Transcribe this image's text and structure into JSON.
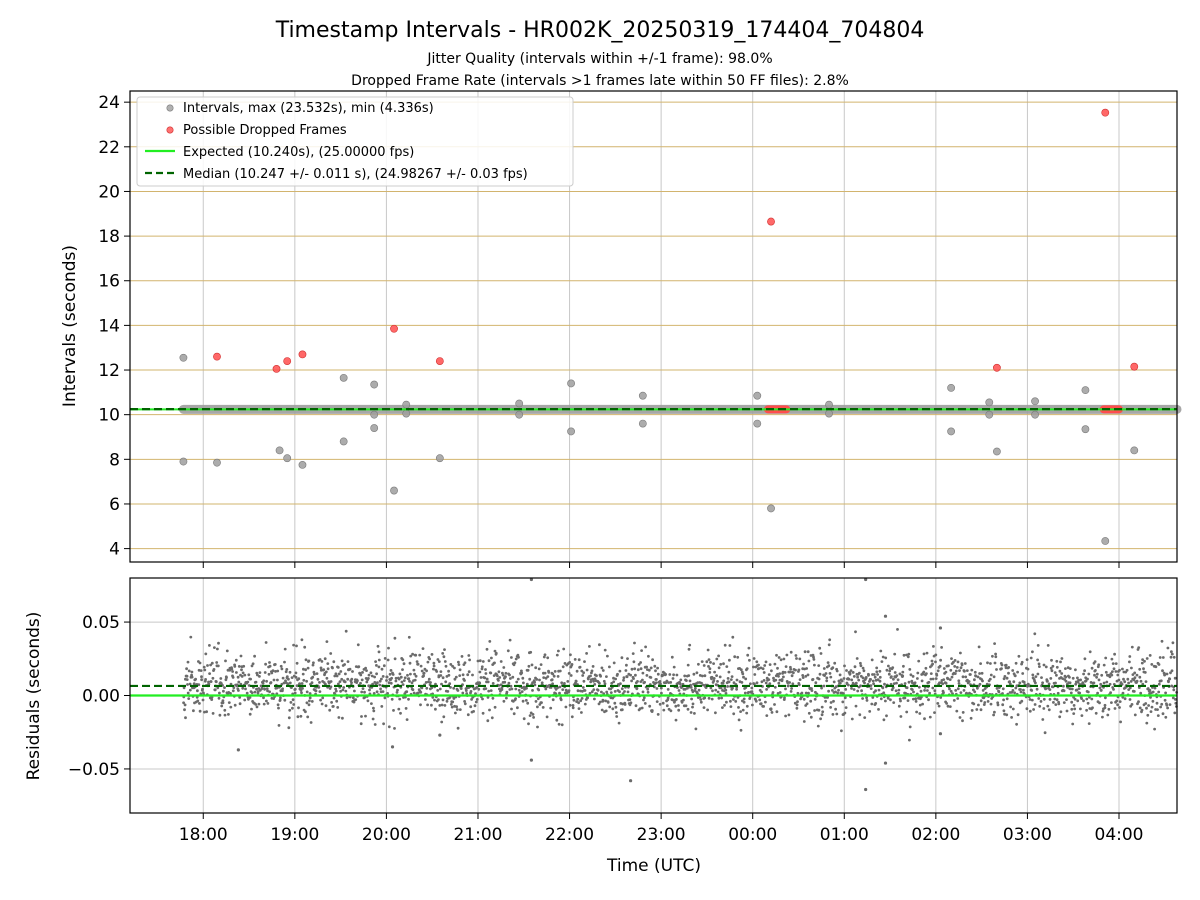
{
  "figure": {
    "title": "Timestamp Intervals - HR002K_20250319_174404_704804",
    "subtitle_jitter": "Jitter Quality (intervals within +/-1 frame): 98.0%",
    "subtitle_dropped": "Dropped Frame Rate (intervals >1 frames late within 50 FF files): 2.8%"
  },
  "colors": {
    "intervals": "#9e9e9e",
    "dropped": "#ff4d4d",
    "expected": "#22ee22",
    "median": "#006400",
    "residuals": "#6b6b6b",
    "gold_grid": "#d2b46e",
    "gray_grid": "#c8c8c8"
  },
  "chart_data": [
    {
      "type": "scatter",
      "panel": "intervals",
      "ylabel": "Intervals (seconds)",
      "xlabel": "",
      "ylim": [
        3.4,
        24.5
      ],
      "xlim": [
        "17:12",
        "04:38"
      ],
      "yticks": [
        "4",
        "6",
        "8",
        "10",
        "12",
        "14",
        "16",
        "18",
        "20",
        "22",
        "24"
      ],
      "ytick_values": [
        4,
        6,
        8,
        10,
        12,
        14,
        16,
        18,
        20,
        22,
        24
      ],
      "grid": true,
      "legend_position": "top-left",
      "legend": [
        {
          "label": "Intervals, max (23.532s), min (4.336s)",
          "kind": "gray-dot"
        },
        {
          "label": "Possible Dropped Frames",
          "kind": "red-dot"
        },
        {
          "label": "Expected (10.240s), (25.00000 fps)",
          "kind": "green-line"
        },
        {
          "label": "Median (10.247 +/- 0.011 s), (24.98267 +/- 0.03 fps)",
          "kind": "dashed-line"
        }
      ],
      "expected_interval": 10.24,
      "median_interval": 10.247,
      "main_band": {
        "start": "17:47",
        "end": "04:38",
        "value": 10.24
      },
      "intervals_outliers": [
        {
          "x": "17:47",
          "y": 12.55
        },
        {
          "x": "17:47",
          "y": 7.9
        },
        {
          "x": "18:09",
          "y": 7.85
        },
        {
          "x": "18:50",
          "y": 8.4
        },
        {
          "x": "18:55",
          "y": 8.05
        },
        {
          "x": "19:05",
          "y": 7.75
        },
        {
          "x": "19:32",
          "y": 11.65
        },
        {
          "x": "19:32",
          "y": 8.8
        },
        {
          "x": "19:52",
          "y": 11.35
        },
        {
          "x": "19:52",
          "y": 9.4
        },
        {
          "x": "19:52",
          "y": 10.0
        },
        {
          "x": "20:05",
          "y": 6.6
        },
        {
          "x": "20:13",
          "y": 10.45
        },
        {
          "x": "20:13",
          "y": 10.05
        },
        {
          "x": "20:35",
          "y": 8.05
        },
        {
          "x": "21:27",
          "y": 10.5
        },
        {
          "x": "21:27",
          "y": 10.0
        },
        {
          "x": "22:01",
          "y": 11.4
        },
        {
          "x": "22:01",
          "y": 9.25
        },
        {
          "x": "22:48",
          "y": 10.85
        },
        {
          "x": "22:48",
          "y": 9.6
        },
        {
          "x": "00:03",
          "y": 10.85
        },
        {
          "x": "00:03",
          "y": 9.6
        },
        {
          "x": "00:12",
          "y": 5.8
        },
        {
          "x": "00:50",
          "y": 10.45
        },
        {
          "x": "00:50",
          "y": 10.05
        },
        {
          "x": "02:10",
          "y": 11.2
        },
        {
          "x": "02:10",
          "y": 9.25
        },
        {
          "x": "02:35",
          "y": 10.55
        },
        {
          "x": "02:35",
          "y": 10.0
        },
        {
          "x": "02:40",
          "y": 8.35
        },
        {
          "x": "03:05",
          "y": 10.6
        },
        {
          "x": "03:05",
          "y": 10.0
        },
        {
          "x": "03:38",
          "y": 11.1
        },
        {
          "x": "03:38",
          "y": 9.35
        },
        {
          "x": "03:51",
          "y": 4.34
        },
        {
          "x": "04:10",
          "y": 8.4
        }
      ],
      "dropped_frames": [
        {
          "x": "18:09",
          "y": 12.6
        },
        {
          "x": "18:48",
          "y": 12.05
        },
        {
          "x": "18:55",
          "y": 12.4
        },
        {
          "x": "19:05",
          "y": 12.7
        },
        {
          "x": "20:05",
          "y": 13.85
        },
        {
          "x": "20:35",
          "y": 12.4
        },
        {
          "x": "00:12",
          "y": 18.65
        },
        {
          "x": "02:40",
          "y": 12.1
        },
        {
          "x": "03:51",
          "y": 23.53
        },
        {
          "x": "04:10",
          "y": 12.15
        }
      ],
      "dropped_clusters": [
        {
          "start": "00:10",
          "end": "00:22",
          "y": 10.24
        },
        {
          "start": "03:50",
          "end": "04:00",
          "y": 10.24
        }
      ]
    },
    {
      "type": "scatter",
      "panel": "residuals",
      "ylabel": "Residuals (seconds)",
      "xlabel": "Time (UTC)",
      "ylim": [
        -0.08,
        0.08
      ],
      "xlim": [
        "17:12",
        "04:38"
      ],
      "yticks": [
        "0.05",
        "0.00",
        "−0.05"
      ],
      "ytick_values": [
        0.05,
        0.0,
        -0.05
      ],
      "xticks": [
        "18:00",
        "19:00",
        "20:00",
        "21:00",
        "22:00",
        "23:00",
        "00:00",
        "01:00",
        "02:00",
        "03:00",
        "04:00"
      ],
      "grid": true,
      "expected_residual": 0.0,
      "median_residual": 0.0065,
      "residual_spread": {
        "center": 0.007,
        "std": 0.011,
        "start": "17:47",
        "end": "04:38"
      },
      "residual_outliers": [
        {
          "x": "21:35",
          "y": 0.079
        },
        {
          "x": "01:14",
          "y": 0.079
        },
        {
          "x": "01:27",
          "y": 0.054
        },
        {
          "x": "02:03",
          "y": 0.046
        },
        {
          "x": "21:35",
          "y": -0.044
        },
        {
          "x": "22:40",
          "y": -0.058
        },
        {
          "x": "01:14",
          "y": -0.064
        },
        {
          "x": "01:27",
          "y": -0.046
        },
        {
          "x": "02:03",
          "y": -0.026
        },
        {
          "x": "18:23",
          "y": -0.037
        },
        {
          "x": "20:04",
          "y": -0.035
        },
        {
          "x": "20:35",
          "y": -0.027
        }
      ]
    }
  ]
}
